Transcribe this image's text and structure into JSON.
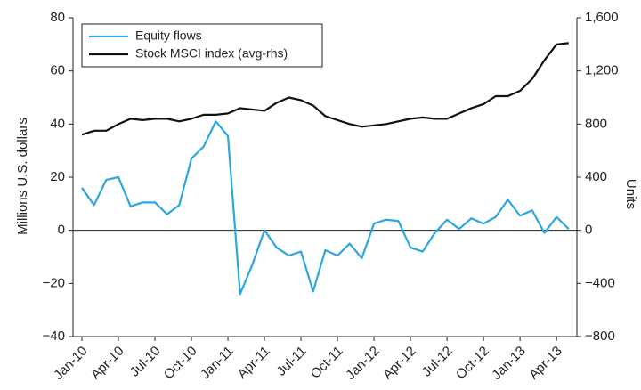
{
  "chart_data": {
    "type": "line",
    "categories": [
      "Jan-10",
      null,
      null,
      "Apr-10",
      null,
      null,
      "Jul-10",
      null,
      null,
      "Oct-10",
      null,
      null,
      "Jan-11",
      null,
      null,
      "Apr-11",
      null,
      null,
      "Jul-11",
      null,
      null,
      "Oct-11",
      null,
      null,
      "Jan-12",
      null,
      null,
      "Apr-12",
      null,
      null,
      "Jul-12",
      null,
      null,
      "Oct-12",
      null,
      null,
      "Jan-13",
      null,
      null,
      "Apr-13",
      null
    ],
    "series": [
      {
        "name": "Equity flows",
        "color": "#2aa7de",
        "axis": "y",
        "values": [
          16,
          9.5,
          19,
          20,
          9,
          10.5,
          10.5,
          6,
          9.5,
          27,
          31.5,
          41,
          35.5,
          -24,
          -13,
          0,
          -6.5,
          -9.5,
          -8,
          -23,
          -7.5,
          -9.5,
          -5,
          -10.5,
          2.5,
          4,
          3.5,
          -6.5,
          -8,
          -1,
          4,
          0.5,
          4.5,
          2.5,
          5,
          11.5,
          5.5,
          7.5,
          -1,
          5,
          0.5
        ]
      },
      {
        "name": "Stock MSCI index (avg-rhs)",
        "color": "#111111",
        "axis": "y2",
        "values": [
          720,
          750,
          750,
          800,
          840,
          830,
          840,
          840,
          820,
          840,
          870,
          870,
          880,
          920,
          910,
          900,
          960,
          1000,
          980,
          940,
          860,
          830,
          800,
          780,
          790,
          800,
          820,
          840,
          850,
          840,
          840,
          880,
          920,
          950,
          1010,
          1010,
          1050,
          1140,
          1280,
          1400,
          1410
        ]
      }
    ],
    "ylabel": "Millions U.S. dollars",
    "y2label": "Units",
    "ylim": [
      -40,
      80
    ],
    "yticks": [
      {
        "value": -40,
        "label": "−40"
      },
      {
        "value": -20,
        "label": "−20"
      },
      0,
      20,
      40,
      60,
      80
    ],
    "y2lim": [
      -800,
      1600
    ],
    "y2ticks": [
      {
        "value": -800,
        "label": "−800"
      },
      {
        "value": -400,
        "label": "−400"
      },
      0,
      400,
      800,
      {
        "value": 1200,
        "label": "1,200"
      },
      {
        "value": 1600,
        "label": "1,600"
      }
    ],
    "legend": "upper left"
  }
}
